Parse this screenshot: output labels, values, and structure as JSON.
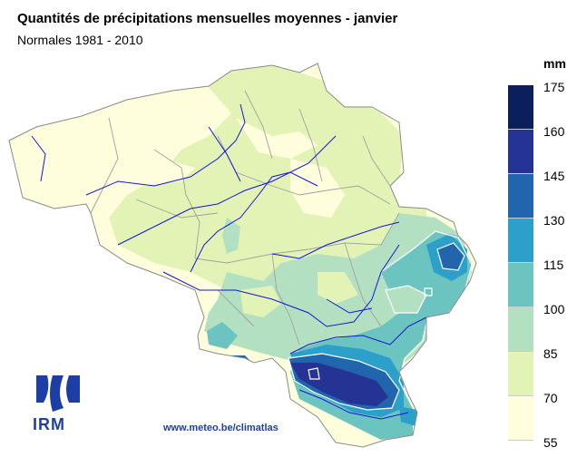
{
  "title": "Quantités de précipitations mensuelles moyennes - janvier",
  "subtitle": "Normales 1981 - 2010",
  "legend": {
    "unit": "mm",
    "ticks": [
      "175",
      "160",
      "145",
      "130",
      "115",
      "100",
      "85",
      "70",
      "55"
    ],
    "classes": [
      {
        "from": 160,
        "to": 175,
        "color": "#0a1f5c"
      },
      {
        "from": 145,
        "to": 160,
        "color": "#253494"
      },
      {
        "from": 130,
        "to": 145,
        "color": "#2166ac"
      },
      {
        "from": 115,
        "to": 130,
        "color": "#2ca0c8"
      },
      {
        "from": 100,
        "to": 115,
        "color": "#6cc4c0"
      },
      {
        "from": 85,
        "to": 100,
        "color": "#b3e0c0"
      },
      {
        "from": 70,
        "to": 85,
        "color": "#e3f3b6"
      },
      {
        "from": 55,
        "to": 70,
        "color": "#fefedc"
      }
    ]
  },
  "logo": {
    "text": "IRM"
  },
  "footer": {
    "url": "www.meteo.be/climatlas"
  },
  "colors": {
    "river": "#1515d6",
    "border": "#a0a0a0",
    "brand": "#1d3fa5"
  }
}
